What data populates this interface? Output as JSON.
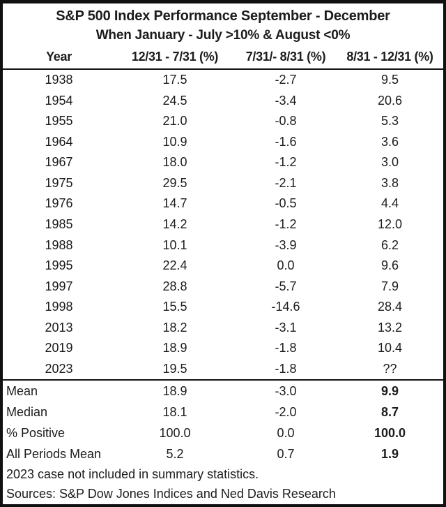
{
  "chart_data": {
    "type": "table",
    "title": "S&P 500 Index Performance September - December",
    "subtitle": "When January - July >10% & August <0%",
    "columns": [
      "Year",
      "12/31 - 7/31 (%)",
      "7/31/- 8/31 (%)",
      "8/31 - 12/31 (%)"
    ],
    "rows": [
      [
        "1938",
        "17.5",
        "-2.7",
        "9.5"
      ],
      [
        "1954",
        "24.5",
        "-3.4",
        "20.6"
      ],
      [
        "1955",
        "21.0",
        "-0.8",
        "5.3"
      ],
      [
        "1964",
        "10.9",
        "-1.6",
        "3.6"
      ],
      [
        "1967",
        "18.0",
        "-1.2",
        "3.0"
      ],
      [
        "1975",
        "29.5",
        "-2.1",
        "3.8"
      ],
      [
        "1976",
        "14.7",
        "-0.5",
        "4.4"
      ],
      [
        "1985",
        "14.2",
        "-1.2",
        "12.0"
      ],
      [
        "1988",
        "10.1",
        "-3.9",
        "6.2"
      ],
      [
        "1995",
        "22.4",
        "0.0",
        "9.6"
      ],
      [
        "1997",
        "28.8",
        "-5.7",
        "7.9"
      ],
      [
        "1998",
        "15.5",
        "-14.6",
        "28.4"
      ],
      [
        "2013",
        "18.2",
        "-3.1",
        "13.2"
      ],
      [
        "2019",
        "18.9",
        "-1.8",
        "10.4"
      ],
      [
        "2023",
        "19.5",
        "-1.8",
        "??"
      ]
    ],
    "summary_rows": [
      [
        "Mean",
        "18.9",
        "-3.0",
        "9.9"
      ],
      [
        "Median",
        "18.1",
        "-2.0",
        "8.7"
      ],
      [
        "% Positive",
        "100.0",
        "0.0",
        "100.0"
      ],
      [
        "All Periods Mean",
        "5.2",
        "0.7",
        "1.9"
      ]
    ],
    "notes": [
      "2023 case not included in summary statistics.",
      "Sources: S&P Dow Jones Indices and Ned Davis Research"
    ],
    "layout": {
      "grid": "off",
      "summary_last_column_bold": true
    },
    "colors": {
      "text": "#1c1c1c",
      "border": "#111111",
      "background": "#ffffff"
    }
  }
}
